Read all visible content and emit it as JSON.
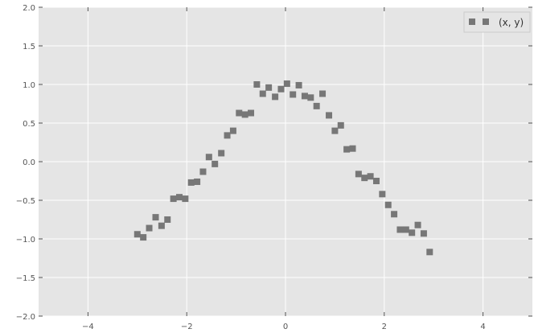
{
  "chart_data": {
    "type": "scatter",
    "title": "",
    "xlabel": "",
    "ylabel": "",
    "xlim": [
      -5,
      5
    ],
    "ylim": [
      -2,
      2
    ],
    "xticks": [
      -4,
      -2,
      0,
      2,
      4
    ],
    "yticks": [
      -2.0,
      -1.5,
      -1.0,
      -0.5,
      0.0,
      0.5,
      1.0,
      1.5,
      2.0
    ],
    "xtick_labels": [
      "−4",
      "−2",
      "0",
      "2",
      "4"
    ],
    "ytick_labels": [
      "−2.0",
      "−1.5",
      "−1.0",
      "−0.5",
      "0.0",
      "0.5",
      "1.0",
      "1.5",
      "2.0"
    ],
    "grid": true,
    "legend": {
      "position": "top-right"
    },
    "background_color": "#e5e5e5",
    "grid_color": "#ffffff",
    "series": [
      {
        "name": "(x, y)",
        "marker": "square",
        "color": "#777777",
        "points": [
          [
            -3.0,
            -0.94
          ],
          [
            -2.88,
            -0.98
          ],
          [
            -2.76,
            -0.86
          ],
          [
            -2.63,
            -0.72
          ],
          [
            -2.51,
            -0.83
          ],
          [
            -2.39,
            -0.75
          ],
          [
            -2.27,
            -0.48
          ],
          [
            -2.15,
            -0.46
          ],
          [
            -2.03,
            -0.48
          ],
          [
            -1.91,
            -0.27
          ],
          [
            -1.79,
            -0.26
          ],
          [
            -1.67,
            -0.13
          ],
          [
            -1.55,
            0.06
          ],
          [
            -1.43,
            -0.03
          ],
          [
            -1.3,
            0.11
          ],
          [
            -1.18,
            0.34
          ],
          [
            -1.06,
            0.4
          ],
          [
            -0.94,
            0.63
          ],
          [
            -0.82,
            0.61
          ],
          [
            -0.7,
            0.63
          ],
          [
            -0.58,
            1.0
          ],
          [
            -0.46,
            0.88
          ],
          [
            -0.34,
            0.96
          ],
          [
            -0.21,
            0.84
          ],
          [
            -0.09,
            0.94
          ],
          [
            0.03,
            1.01
          ],
          [
            0.15,
            0.87
          ],
          [
            0.27,
            0.99
          ],
          [
            0.39,
            0.85
          ],
          [
            0.51,
            0.83
          ],
          [
            0.63,
            0.72
          ],
          [
            0.75,
            0.88
          ],
          [
            0.88,
            0.6
          ],
          [
            1.0,
            0.4
          ],
          [
            1.12,
            0.47
          ],
          [
            1.24,
            0.16
          ],
          [
            1.36,
            0.17
          ],
          [
            1.48,
            -0.16
          ],
          [
            1.6,
            -0.21
          ],
          [
            1.72,
            -0.19
          ],
          [
            1.84,
            -0.25
          ],
          [
            1.96,
            -0.42
          ],
          [
            2.08,
            -0.56
          ],
          [
            2.2,
            -0.68
          ],
          [
            2.32,
            -0.88
          ],
          [
            2.44,
            -0.88
          ],
          [
            2.56,
            -0.92
          ],
          [
            2.68,
            -0.82
          ],
          [
            2.8,
            -0.93
          ],
          [
            2.92,
            -1.17
          ]
        ]
      }
    ]
  }
}
